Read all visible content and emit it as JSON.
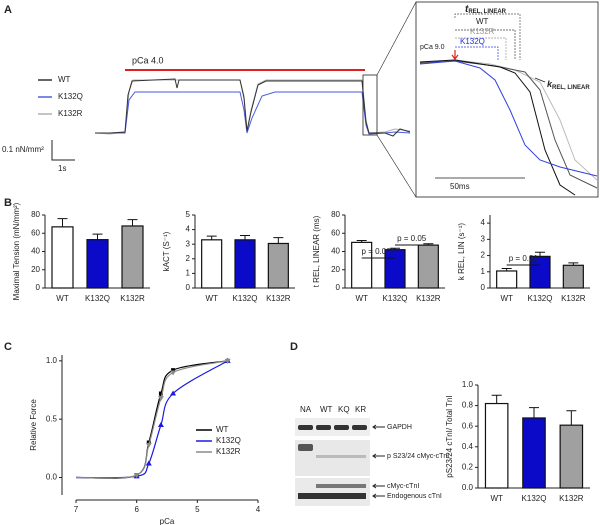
{
  "figure": {
    "panel_labels": [
      "A",
      "B",
      "C",
      "D"
    ],
    "trace_legend": [
      "WT",
      "K132Q",
      "K132R"
    ],
    "stimulus": "pCa  4.0",
    "scale_force": "0.1 nN/mm²",
    "scale_time": "1s",
    "inset": {
      "t_symbol": "t",
      "t_sub": "REL, LINEAR",
      "labels": [
        "WT",
        "K132R",
        "K132Q"
      ],
      "pca": "pCa 9.0",
      "k_symbol": "k",
      "k_sub": "REL, LINEAR",
      "scale": "50ms"
    },
    "blot": {
      "lanes": [
        "NA",
        "WT",
        "KQ",
        "KR"
      ],
      "bands": [
        "GAPDH",
        "p S23/24 cMyc-cTnI",
        "cMyc-cTnI",
        "Endogenous cTnI"
      ]
    }
  },
  "chart_data": [
    {
      "type": "bar",
      "ylabel": "Maximal Tension (mN/mm²)",
      "categories": [
        "WT",
        "K132Q",
        "K132R"
      ],
      "values": [
        67,
        53,
        68
      ],
      "errors": [
        9,
        6,
        7
      ],
      "colors": [
        "#ffffff",
        "#0a0ac8",
        "#a0a0a0"
      ],
      "ylim": [
        0,
        80
      ],
      "yticks": [
        0,
        20,
        40,
        60,
        80
      ]
    },
    {
      "type": "bar",
      "ylabel": "kACT (S⁻¹)",
      "categories": [
        "WT",
        "K132Q",
        "K132R"
      ],
      "values": [
        3.3,
        3.3,
        3.05
      ],
      "errors": [
        0.25,
        0.3,
        0.4
      ],
      "colors": [
        "#ffffff",
        "#0a0ac8",
        "#a0a0a0"
      ],
      "ylim": [
        0,
        5
      ],
      "yticks": [
        0,
        1,
        2,
        3,
        4,
        5
      ]
    },
    {
      "type": "bar",
      "ylabel": "t REL, LINEAR (ms)",
      "categories": [
        "WT",
        "K132Q",
        "K132R"
      ],
      "values": [
        50,
        42,
        47
      ],
      "errors": [
        2,
        1.5,
        1.5
      ],
      "colors": [
        "#ffffff",
        "#0a0ac8",
        "#a0a0a0"
      ],
      "ylim": [
        0,
        80
      ],
      "yticks": [
        0,
        20,
        40,
        60,
        80
      ],
      "annotations": [
        "p = 0.002",
        "p = 0.05"
      ]
    },
    {
      "type": "bar",
      "ylabel": "k REL, LIN (s⁻¹)",
      "categories": [
        "WT",
        "K132Q",
        "K132R"
      ],
      "values": [
        1.05,
        1.95,
        1.4
      ],
      "errors": [
        0.15,
        0.25,
        0.15
      ],
      "colors": [
        "#ffffff",
        "#0a0ac8",
        "#a0a0a0"
      ],
      "ylim": [
        0,
        4.5
      ],
      "yticks": [
        0,
        1,
        2,
        3,
        4
      ],
      "annotations": [
        "p = 0.01"
      ]
    },
    {
      "type": "line",
      "xlabel": "pCa",
      "ylabel": "Relative Force",
      "x": [
        7.0,
        6.0,
        5.8,
        5.6,
        5.4,
        4.5
      ],
      "xlim": [
        7,
        4
      ],
      "xticks": [
        7,
        6,
        5,
        4
      ],
      "ylim": [
        -0.15,
        1.05
      ],
      "yticks": [
        {
          "value": 0,
          "label": "0.0"
        },
        {
          "value": 0.5,
          "label": "0.5"
        },
        {
          "value": 1,
          "label": "1.0"
        }
      ],
      "series": [
        {
          "name": "WT",
          "color": "#000000",
          "values": [
            0,
            0.02,
            0.3,
            0.72,
            0.92,
            1.0
          ]
        },
        {
          "name": "K132Q",
          "color": "#1a1ae0",
          "values": [
            0,
            0.01,
            0.12,
            0.45,
            0.72,
            1.0
          ]
        },
        {
          "name": "K132R",
          "color": "#8a8a8a",
          "values": [
            0,
            0.02,
            0.28,
            0.68,
            0.9,
            1.0
          ]
        }
      ]
    },
    {
      "type": "bar",
      "ylabel": "pS23/24 cTnI/ Total TnI",
      "categories": [
        "WT",
        "K132Q",
        "K132R"
      ],
      "values": [
        0.82,
        0.68,
        0.61
      ],
      "errors": [
        0.08,
        0.1,
        0.14
      ],
      "colors": [
        "#ffffff",
        "#0a0ac8",
        "#a0a0a0"
      ],
      "ylim": [
        0,
        1.0
      ],
      "yticks": [
        {
          "value": 0,
          "label": "0.0"
        },
        {
          "value": 0.2,
          "label": "0.2"
        },
        {
          "value": 0.4,
          "label": "0.4"
        },
        {
          "value": 0.6,
          "label": "0.6"
        },
        {
          "value": 0.8,
          "label": "0.8"
        },
        {
          "value": 1,
          "label": "1.0"
        }
      ]
    }
  ]
}
